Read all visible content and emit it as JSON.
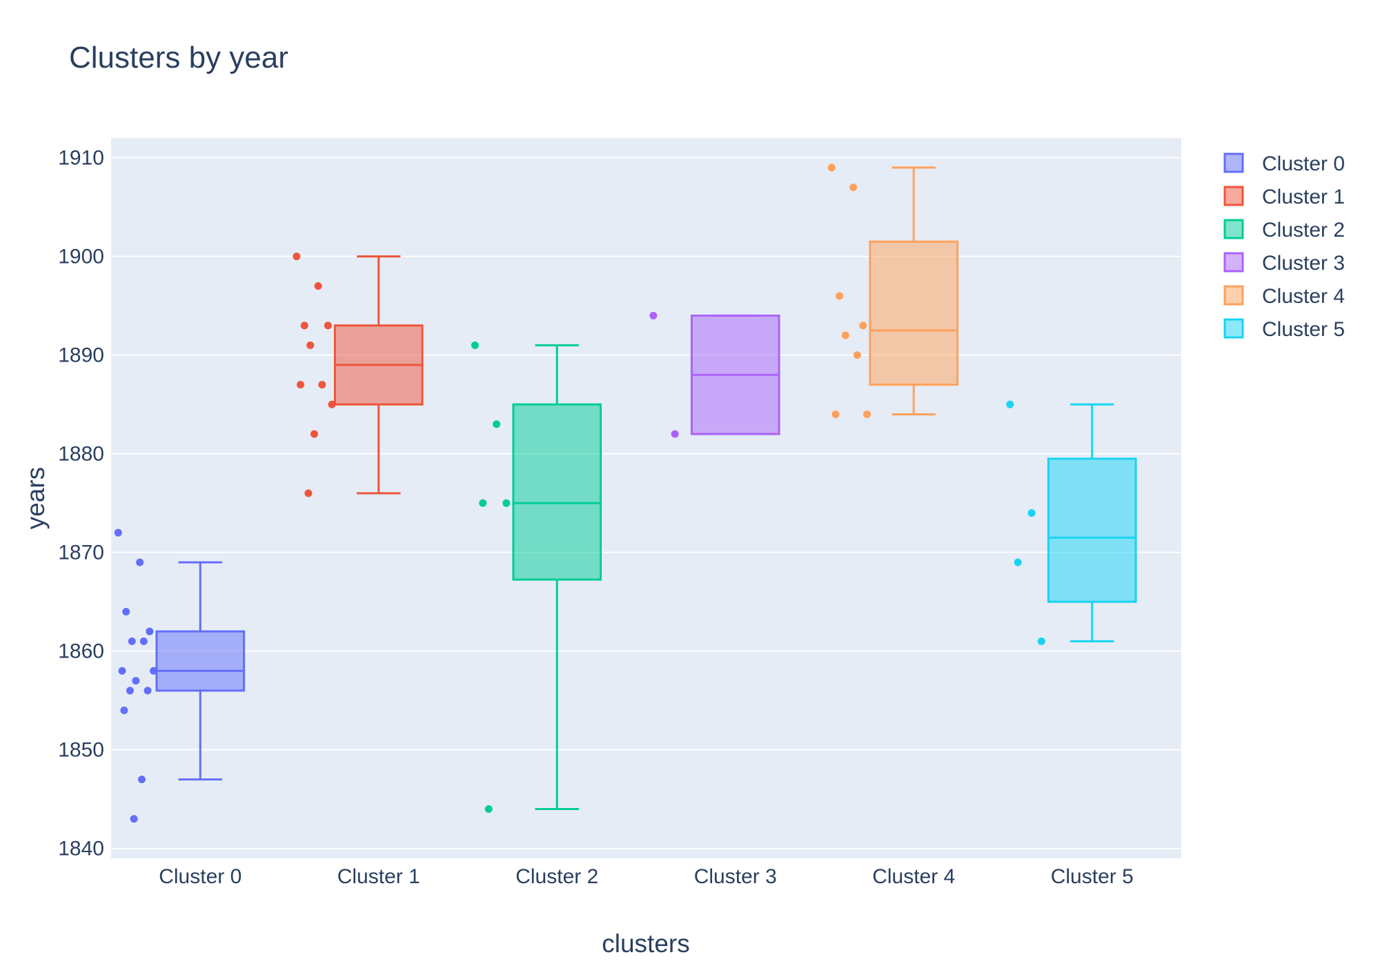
{
  "chart_data": {
    "type": "box",
    "title": "Clusters by year",
    "xlabel": "clusters",
    "ylabel": "years",
    "ylim": [
      1839,
      1912
    ],
    "yticks": [
      1840,
      1850,
      1860,
      1870,
      1880,
      1890,
      1900,
      1910
    ],
    "categories": [
      "Cluster 0",
      "Cluster 1",
      "Cluster 2",
      "Cluster 3",
      "Cluster 4",
      "Cluster 5"
    ],
    "grid": true,
    "legend_position": "top-right",
    "series": [
      {
        "name": "Cluster 0",
        "color": "#636efa",
        "min": 1847,
        "q1": 1856,
        "median": 1858,
        "q3": 1862,
        "max": 1869,
        "points": [
          1872,
          1869,
          1864,
          1862,
          1861,
          1861,
          1858,
          1858,
          1857,
          1856,
          1856,
          1854,
          1847,
          1843
        ]
      },
      {
        "name": "Cluster 1",
        "color": "#ef553b",
        "min": 1876,
        "q1": 1885,
        "median": 1889,
        "q3": 1893,
        "max": 1900,
        "points": [
          1900,
          1897,
          1893,
          1893,
          1891,
          1887,
          1887,
          1885,
          1882,
          1876
        ]
      },
      {
        "name": "Cluster 2",
        "color": "#00cc96",
        "min": 1844,
        "q1": 1867.25,
        "median": 1875,
        "q3": 1885,
        "max": 1891,
        "points": [
          1891,
          1883,
          1875,
          1875,
          1844
        ]
      },
      {
        "name": "Cluster 3",
        "color": "#ab63fa",
        "min": 1882,
        "q1": 1882,
        "median": 1888,
        "q3": 1894,
        "max": 1894,
        "points": [
          1894,
          1882
        ]
      },
      {
        "name": "Cluster 4",
        "color": "#ffa15a",
        "min": 1884,
        "q1": 1887,
        "median": 1892.5,
        "q3": 1901.5,
        "max": 1909,
        "points": [
          1909,
          1907,
          1896,
          1893,
          1892,
          1890,
          1884,
          1884
        ]
      },
      {
        "name": "Cluster 5",
        "color": "#19d3f3",
        "min": 1861,
        "q1": 1865,
        "median": 1871.5,
        "q3": 1879.5,
        "max": 1885,
        "points": [
          1885,
          1874,
          1869,
          1861
        ]
      }
    ]
  }
}
